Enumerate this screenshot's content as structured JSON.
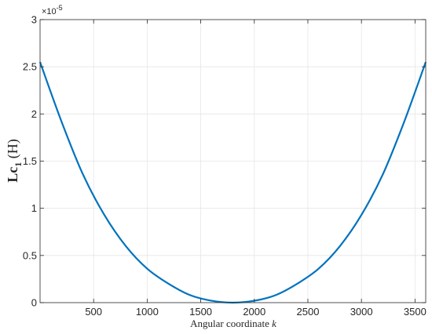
{
  "chart_data": {
    "type": "line",
    "title": "",
    "xlabel": "Angular coordinate k",
    "xlabel_parts": {
      "text": "Angular coordinate ",
      "var": "k"
    },
    "ylabel": "Lc1 (H)",
    "ylabel_parts": {
      "main": "Lc",
      "sub": "1",
      "unit": " (H)"
    },
    "y_exponent_label": "×10",
    "y_exponent_power": "-5",
    "xlim": [
      0,
      3600
    ],
    "ylim": [
      0,
      3
    ],
    "xticks": [
      500,
      1000,
      1500,
      2000,
      2500,
      3000,
      3500
    ],
    "yticks": [
      0,
      0.5,
      1,
      1.5,
      2,
      2.5,
      3
    ],
    "ytick_labels": [
      "0",
      "0.5",
      "1",
      "1.5",
      "2",
      "2.5",
      "3"
    ],
    "grid": true,
    "series": [
      {
        "color": "#0072bd",
        "x": [
          0,
          200,
          400,
          600,
          800,
          1000,
          1200,
          1400,
          1600,
          1800,
          2000,
          2200,
          2400,
          2600,
          2800,
          3000,
          3200,
          3400,
          3600
        ],
        "y": [
          2.55,
          1.92,
          1.36,
          0.93,
          0.6,
          0.36,
          0.2,
          0.08,
          0.02,
          0.0,
          0.02,
          0.08,
          0.2,
          0.36,
          0.6,
          0.93,
          1.36,
          1.92,
          2.55
        ]
      }
    ]
  }
}
